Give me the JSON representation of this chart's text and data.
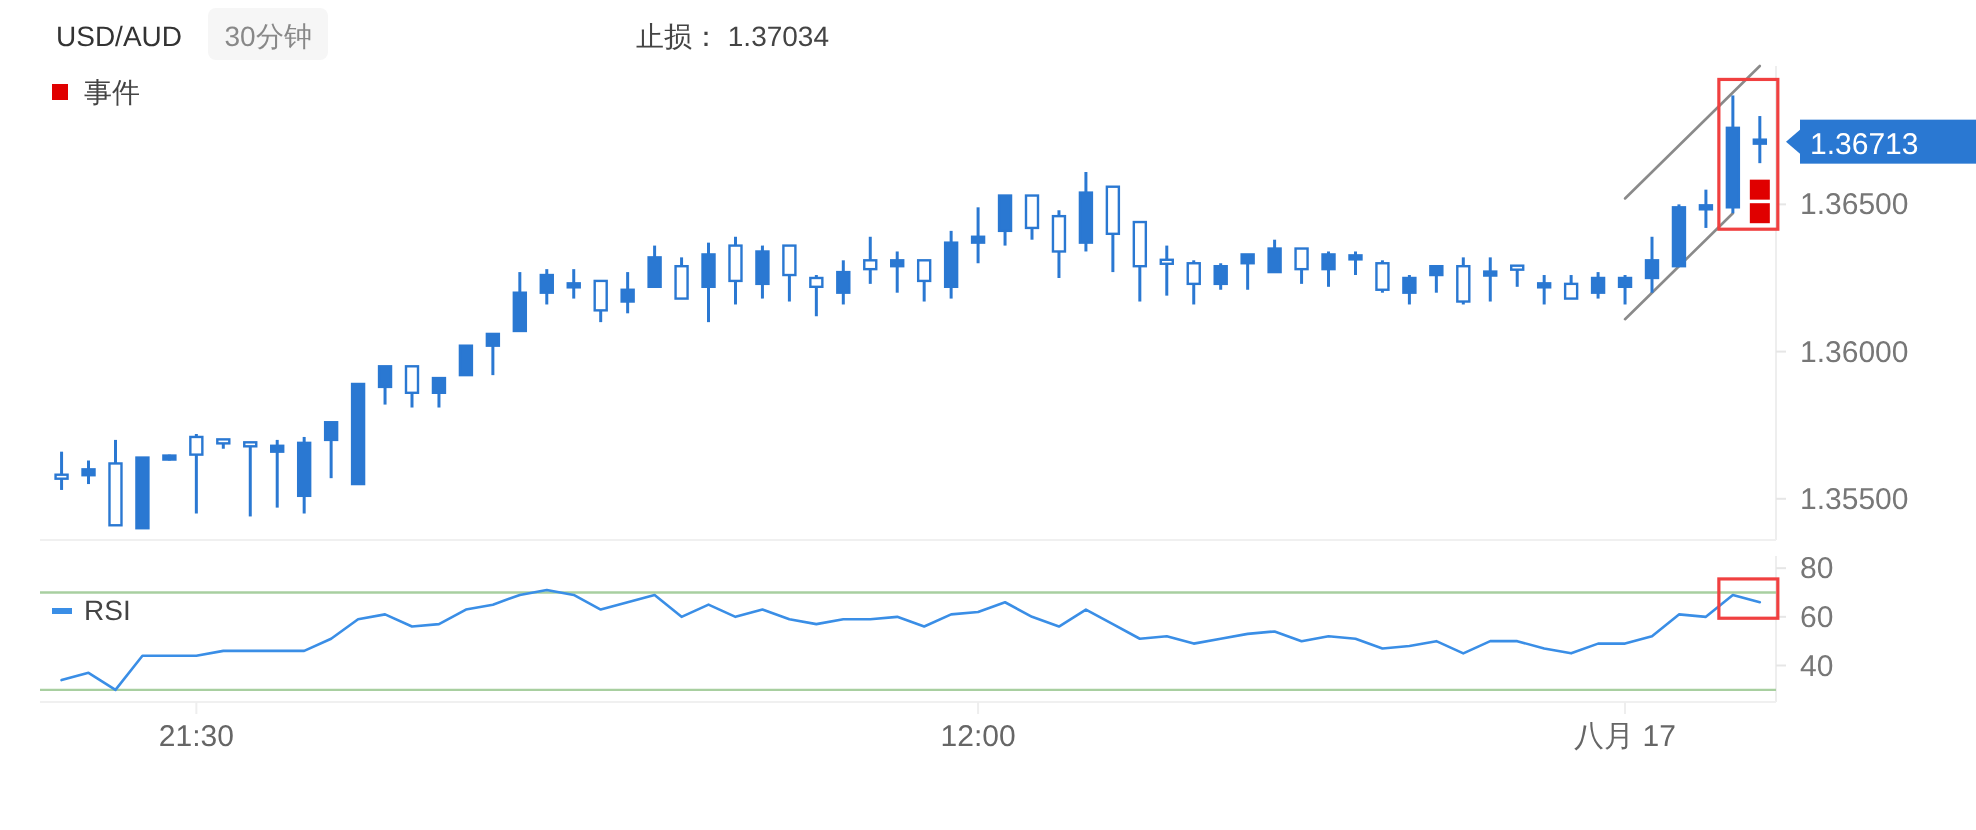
{
  "chart_data": [
    {
      "type": "candlestick",
      "title": "USD/AUD",
      "subtitle": "30分钟",
      "annotations": [
        "止损： 1.37034",
        "1.36713"
      ],
      "color": "#2a78d2",
      "ohlc": [
        [
          1.3558,
          1.3566,
          1.3553,
          1.3557
        ],
        [
          1.3558,
          1.3563,
          1.3555,
          1.356
        ],
        [
          1.3562,
          1.357,
          1.3541,
          1.3541
        ],
        [
          1.354,
          1.3564,
          1.354,
          1.3564
        ],
        [
          1.3564,
          1.3565,
          1.3563,
          1.3564
        ],
        [
          1.3571,
          1.3572,
          1.3545,
          1.3565
        ],
        [
          1.357,
          1.357,
          1.3567,
          1.3569
        ],
        [
          1.3569,
          1.3569,
          1.3544,
          1.3568
        ],
        [
          1.3566,
          1.357,
          1.3547,
          1.3568
        ],
        [
          1.3551,
          1.3571,
          1.3545,
          1.3569
        ],
        [
          1.357,
          1.3576,
          1.3557,
          1.3576
        ],
        [
          1.3555,
          1.3589,
          1.3555,
          1.3589
        ],
        [
          1.3588,
          1.3595,
          1.3582,
          1.3595
        ],
        [
          1.3595,
          1.3595,
          1.3581,
          1.3586
        ],
        [
          1.3586,
          1.3591,
          1.3581,
          1.3591
        ],
        [
          1.3592,
          1.3602,
          1.3592,
          1.3602
        ],
        [
          1.3602,
          1.3606,
          1.3592,
          1.3606
        ],
        [
          1.3607,
          1.3627,
          1.3607,
          1.362
        ],
        [
          1.362,
          1.3628,
          1.3616,
          1.3626
        ],
        [
          1.3622,
          1.3628,
          1.3618,
          1.3623
        ],
        [
          1.3624,
          1.3624,
          1.361,
          1.3614
        ],
        [
          1.3617,
          1.3627,
          1.3613,
          1.3621
        ],
        [
          1.3622,
          1.3636,
          1.3622,
          1.3632
        ],
        [
          1.3629,
          1.3632,
          1.3618,
          1.3618
        ],
        [
          1.3622,
          1.3637,
          1.361,
          1.3633
        ],
        [
          1.3636,
          1.3639,
          1.3616,
          1.3624
        ],
        [
          1.3623,
          1.3636,
          1.3618,
          1.3634
        ],
        [
          1.3636,
          1.3636,
          1.3617,
          1.3626
        ],
        [
          1.3625,
          1.3626,
          1.3612,
          1.3622
        ],
        [
          1.362,
          1.3631,
          1.3616,
          1.3627
        ],
        [
          1.3631,
          1.3639,
          1.3623,
          1.3628
        ],
        [
          1.3629,
          1.3634,
          1.362,
          1.3631
        ],
        [
          1.3631,
          1.3631,
          1.3617,
          1.3624
        ],
        [
          1.3622,
          1.3641,
          1.3618,
          1.3637
        ],
        [
          1.3637,
          1.3649,
          1.363,
          1.3639
        ],
        [
          1.3641,
          1.3653,
          1.3636,
          1.3653
        ],
        [
          1.3653,
          1.3653,
          1.3638,
          1.3642
        ],
        [
          1.3646,
          1.3648,
          1.3625,
          1.3634
        ],
        [
          1.3637,
          1.3661,
          1.3634,
          1.3654
        ],
        [
          1.3656,
          1.3656,
          1.3627,
          1.364
        ],
        [
          1.3644,
          1.3644,
          1.3617,
          1.3629
        ],
        [
          1.3631,
          1.3636,
          1.3619,
          1.363
        ],
        [
          1.363,
          1.3631,
          1.3616,
          1.3623
        ],
        [
          1.3623,
          1.363,
          1.3621,
          1.3629
        ],
        [
          1.363,
          1.3633,
          1.3621,
          1.3633
        ],
        [
          1.3627,
          1.3638,
          1.3627,
          1.3635
        ],
        [
          1.3635,
          1.3635,
          1.3623,
          1.3628
        ],
        [
          1.3628,
          1.3634,
          1.3622,
          1.3633
        ],
        [
          1.3632,
          1.3634,
          1.3626,
          1.3632
        ],
        [
          1.363,
          1.3631,
          1.362,
          1.3621
        ],
        [
          1.362,
          1.3626,
          1.3616,
          1.3625
        ],
        [
          1.3626,
          1.3629,
          1.362,
          1.3629
        ],
        [
          1.3629,
          1.3632,
          1.3616,
          1.3617
        ],
        [
          1.3626,
          1.3632,
          1.3617,
          1.3627
        ],
        [
          1.3629,
          1.3629,
          1.3622,
          1.3628
        ],
        [
          1.3622,
          1.3626,
          1.3616,
          1.3623
        ],
        [
          1.3623,
          1.3626,
          1.3618,
          1.3618
        ],
        [
          1.362,
          1.3627,
          1.3618,
          1.3625
        ],
        [
          1.3622,
          1.3626,
          1.3616,
          1.3625
        ],
        [
          1.3625,
          1.3639,
          1.362,
          1.3631
        ],
        [
          1.3629,
          1.365,
          1.3629,
          1.3649
        ],
        [
          1.3649,
          1.3655,
          1.3642,
          1.3649
        ],
        [
          1.3649,
          1.3687,
          1.3647,
          1.3676
        ],
        [
          1.36713,
          1.368,
          1.3664,
          1.36713
        ]
      ],
      "series": [
        {
          "name": "事件",
          "type": "scatter",
          "marker": "square",
          "color": "#e00000",
          "values": [
            null,
            null,
            null,
            null,
            null,
            null,
            null,
            null,
            null,
            null,
            null,
            null,
            null,
            null,
            null,
            null,
            null,
            null,
            null,
            null,
            null,
            null,
            null,
            null,
            null,
            null,
            null,
            null,
            null,
            null,
            null,
            null,
            null,
            null,
            null,
            null,
            null,
            null,
            null,
            null,
            null,
            null,
            null,
            null,
            null,
            null,
            null,
            null,
            null,
            null,
            null,
            null,
            null,
            null,
            null,
            null,
            null,
            null,
            null,
            null,
            null,
            null,
            null,
            1.3655
          ]
        },
        {
          "type": "scatter",
          "marker": "square",
          "color": "#e00000",
          "values": [
            null,
            null,
            null,
            null,
            null,
            null,
            null,
            null,
            null,
            null,
            null,
            null,
            null,
            null,
            null,
            null,
            null,
            null,
            null,
            null,
            null,
            null,
            null,
            null,
            null,
            null,
            null,
            null,
            null,
            null,
            null,
            null,
            null,
            null,
            null,
            null,
            null,
            null,
            null,
            null,
            null,
            null,
            null,
            null,
            null,
            null,
            null,
            null,
            null,
            null,
            null,
            null,
            null,
            null,
            null,
            null,
            null,
            null,
            null,
            null,
            null,
            null,
            null,
            1.3647
          ]
        },
        {
          "type": "line",
          "color": "#8a8a8a",
          "values": [
            null,
            null,
            null,
            null,
            null,
            null,
            null,
            null,
            null,
            null,
            null,
            null,
            null,
            null,
            null,
            null,
            null,
            null,
            null,
            null,
            null,
            null,
            null,
            null,
            null,
            null,
            null,
            null,
            null,
            null,
            null,
            null,
            null,
            null,
            null,
            null,
            null,
            null,
            null,
            null,
            null,
            null,
            null,
            null,
            null,
            null,
            null,
            null,
            null,
            null,
            null,
            null,
            null,
            null,
            null,
            null,
            null,
            null,
            1.3652,
            1.3661,
            1.367,
            1.3679,
            1.3688,
            1.3697
          ]
        },
        {
          "type": "line",
          "color": "#8a8a8a",
          "values": [
            null,
            null,
            null,
            null,
            null,
            null,
            null,
            null,
            null,
            null,
            null,
            null,
            null,
            null,
            null,
            null,
            null,
            null,
            null,
            null,
            null,
            null,
            null,
            null,
            null,
            null,
            null,
            null,
            null,
            null,
            null,
            null,
            null,
            null,
            null,
            null,
            null,
            null,
            null,
            null,
            null,
            null,
            null,
            null,
            null,
            null,
            null,
            null,
            null,
            null,
            null,
            null,
            null,
            null,
            null,
            null,
            null,
            null,
            1.3611,
            1.362,
            1.3629,
            1.3638,
            1.3647,
            null
          ]
        }
      ],
      "ylim": [
        1.3536,
        1.3697
      ],
      "yticks": [
        {
          "value": 1.355,
          "label": "1.35500"
        },
        {
          "value": 1.36,
          "label": "1.36000"
        },
        {
          "value": 1.365,
          "label": "1.36500"
        }
      ],
      "tick_labels": "y",
      "legend": "top left",
      "grid": false
    },
    {
      "type": "line",
      "categories": [
        null,
        null,
        null,
        null,
        null,
        "21:30",
        null,
        null,
        null,
        null,
        null,
        null,
        null,
        null,
        null,
        null,
        null,
        null,
        null,
        null,
        null,
        null,
        null,
        null,
        null,
        null,
        null,
        null,
        null,
        null,
        null,
        null,
        null,
        null,
        "12:00",
        null,
        null,
        null,
        null,
        null,
        null,
        null,
        null,
        null,
        null,
        null,
        null,
        null,
        null,
        null,
        null,
        null,
        null,
        null,
        null,
        null,
        null,
        null,
        "八月 17",
        null,
        null,
        null,
        null,
        null
      ],
      "series": [
        {
          "name": "RSI",
          "color": "#3a8ee6",
          "values": [
            34,
            37,
            30,
            44,
            44,
            44,
            46,
            46,
            46,
            46,
            51,
            59,
            61,
            56,
            57,
            63,
            65,
            69,
            71,
            69,
            63,
            66,
            69,
            60,
            65,
            60,
            63,
            59,
            57,
            59,
            59,
            60,
            56,
            61,
            62,
            66,
            60,
            56,
            63,
            57,
            51,
            52,
            49,
            51,
            53,
            54,
            50,
            52,
            51,
            47,
            48,
            50,
            45,
            50,
            50,
            47,
            45,
            49,
            49,
            52,
            61,
            60,
            69,
            66
          ]
        }
      ],
      "ylim": [
        25,
        85
      ],
      "yticks": [
        40,
        60,
        80
      ],
      "ref_lines": [
        {
          "axis": "y",
          "value": 70,
          "color": "#a8cfa0"
        },
        {
          "axis": "y",
          "value": 30,
          "color": "#a8cfa0"
        }
      ],
      "legend": "top left",
      "grid": false,
      "line_style": "solid",
      "marker": "none"
    }
  ]
}
